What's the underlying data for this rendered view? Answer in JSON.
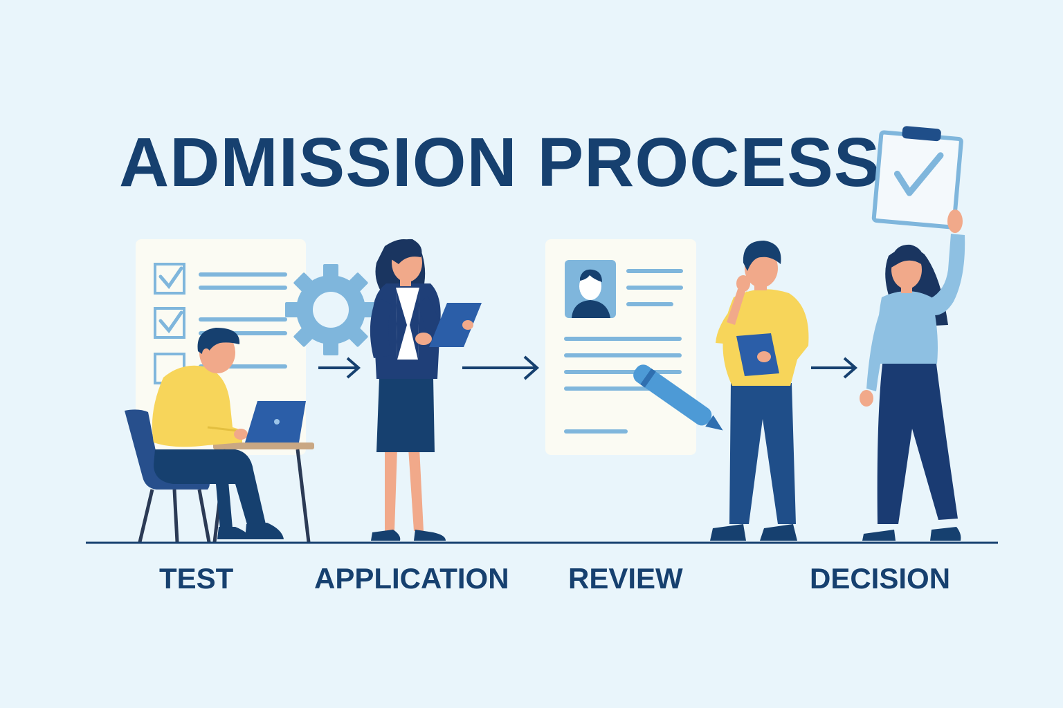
{
  "title": "ADMISSION PROCESS",
  "steps": [
    {
      "label": "TEST"
    },
    {
      "label": "APPLICATION"
    },
    {
      "label": "REVIEW"
    },
    {
      "label": "DECISION"
    }
  ],
  "colors": {
    "background": "#e9f5fb",
    "navy": "#16406f",
    "blue": "#1f4e89",
    "light_blue": "#7fb6dc",
    "yellow": "#f7d55a",
    "paper": "#fbfbf3",
    "skin": "#f1a98a"
  },
  "icons": [
    "checklist-icon",
    "gear-icon",
    "profile-icon",
    "pen-icon",
    "laptop-icon",
    "clipboard-check-icon",
    "arrow-right-icon"
  ]
}
